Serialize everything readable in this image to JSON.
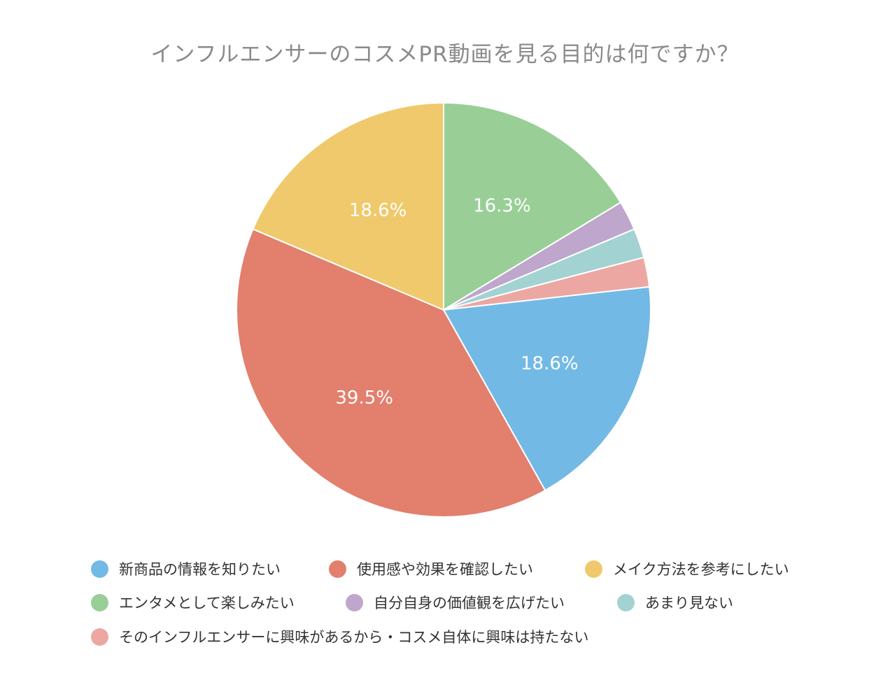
{
  "chart_data": {
    "type": "pie",
    "title": "インフルエンサーのコスメPR動画を見る目的は何ですか？",
    "slices": [
      {
        "label": "新商品の情報を知りたい",
        "value": 18.6,
        "value_label": "18.6%",
        "color": "#72b9e6"
      },
      {
        "label": "使用感や効果を確認したい",
        "value": 39.5,
        "value_label": "39.5%",
        "color": "#e27f6d"
      },
      {
        "label": "メイク方法を参考にしたい",
        "value": 18.6,
        "value_label": "18.6%",
        "color": "#f0c96c"
      },
      {
        "label": "エンタメとして楽しみたい",
        "value": 16.3,
        "value_label": "16.3%",
        "color": "#99cf96"
      },
      {
        "label": "自分自身の価値観を広げたい",
        "value": 2.3,
        "value_label": "",
        "color": "#bfa6cd"
      },
      {
        "label": "あまり見ない",
        "value": 2.3,
        "value_label": "",
        "color": "#a3d2d3"
      },
      {
        "label": "そのインフルエンサーに興味があるから・コスメ自体に興味は持たない",
        "value": 2.3,
        "value_label": "",
        "color": "#eca7a3"
      }
    ],
    "start": "12 o'clock",
    "direction": "counterclockwise",
    "legend_position": "bottom"
  }
}
